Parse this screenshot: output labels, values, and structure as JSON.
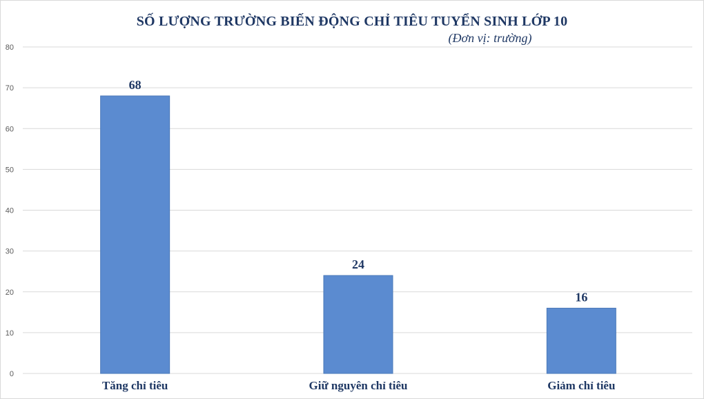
{
  "chart_data": {
    "type": "bar",
    "title": "SỐ LƯỢNG TRƯỜNG BIẾN ĐỘNG CHỈ TIÊU TUYỂN SINH LỚP 10",
    "subtitle": "(Đơn vị: trường)",
    "categories": [
      "Tăng chỉ tiêu",
      "Giữ nguyên chỉ tiêu",
      "Giảm chỉ tiêu"
    ],
    "values": [
      68,
      24,
      16
    ],
    "data_labels": [
      "68",
      "24",
      "16"
    ],
    "ylim": [
      0,
      80
    ],
    "yticks": [
      0,
      10,
      20,
      30,
      40,
      50,
      60,
      70,
      80
    ],
    "grid": true,
    "legend": "none",
    "bar_color": "#5b8bd0",
    "bar_edge_color": "#4a78b8",
    "text_color": "#1f3864"
  }
}
